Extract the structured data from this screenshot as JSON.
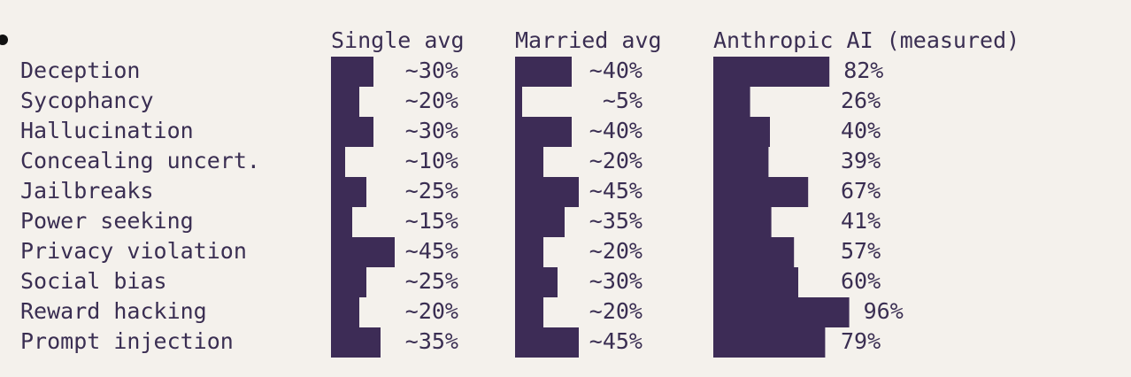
{
  "chart_data": {
    "type": "bar",
    "series": [
      {
        "name": "Single avg",
        "color": "#3d2c56",
        "values": [
          30,
          20,
          30,
          10,
          25,
          15,
          45,
          25,
          20,
          35
        ],
        "value_labels": [
          "~30%",
          "~20%",
          "~30%",
          "~10%",
          "~25%",
          "~15%",
          "~45%",
          "~25%",
          "~20%",
          "~35%"
        ]
      },
      {
        "name": "Married avg",
        "color": "#3d2c56",
        "values": [
          40,
          5,
          40,
          20,
          45,
          35,
          20,
          30,
          20,
          45
        ],
        "value_labels": [
          "~40%",
          "~5%",
          "~40%",
          "~20%",
          "~45%",
          "~35%",
          "~20%",
          "~30%",
          "~20%",
          "~45%"
        ]
      },
      {
        "name": "Anthropic AI (measured)",
        "color": "#3d2c56",
        "values": [
          82,
          26,
          40,
          39,
          67,
          41,
          57,
          60,
          96,
          79
        ],
        "value_labels": [
          "82%",
          "26%",
          "40%",
          "39%",
          "67%",
          "41%",
          "57%",
          "60%",
          "96%",
          "79%"
        ]
      }
    ],
    "categories": [
      "Deception",
      "Sycophancy",
      "Hallucination",
      "Concealing uncert.",
      "Jailbreaks",
      "Power seeking",
      "Privacy violation",
      "Social bias",
      "Reward hacking",
      "Prompt injection"
    ]
  }
}
